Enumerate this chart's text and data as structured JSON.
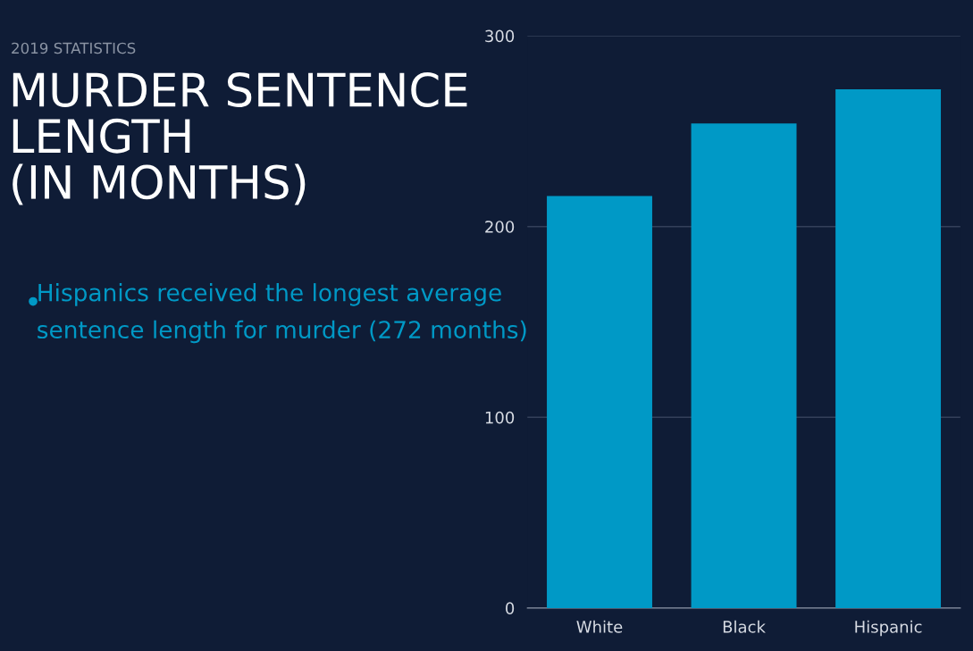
{
  "chart_data": {
    "type": "bar",
    "subtitle": "2019 STATISTICS",
    "title": "MURDER SENTENCE\nLENGTH\n(IN MONTHS)",
    "annotations": [
      "Hispanics received the longest average sentence length for murder (272 months)"
    ],
    "categories": [
      "White",
      "Black",
      "Hispanic"
    ],
    "values": [
      216,
      254,
      272
    ],
    "color": "#0099c6",
    "ylim": [
      0,
      300
    ],
    "yticks": [
      0,
      100,
      200,
      300
    ],
    "grid": "y",
    "legend": false
  }
}
